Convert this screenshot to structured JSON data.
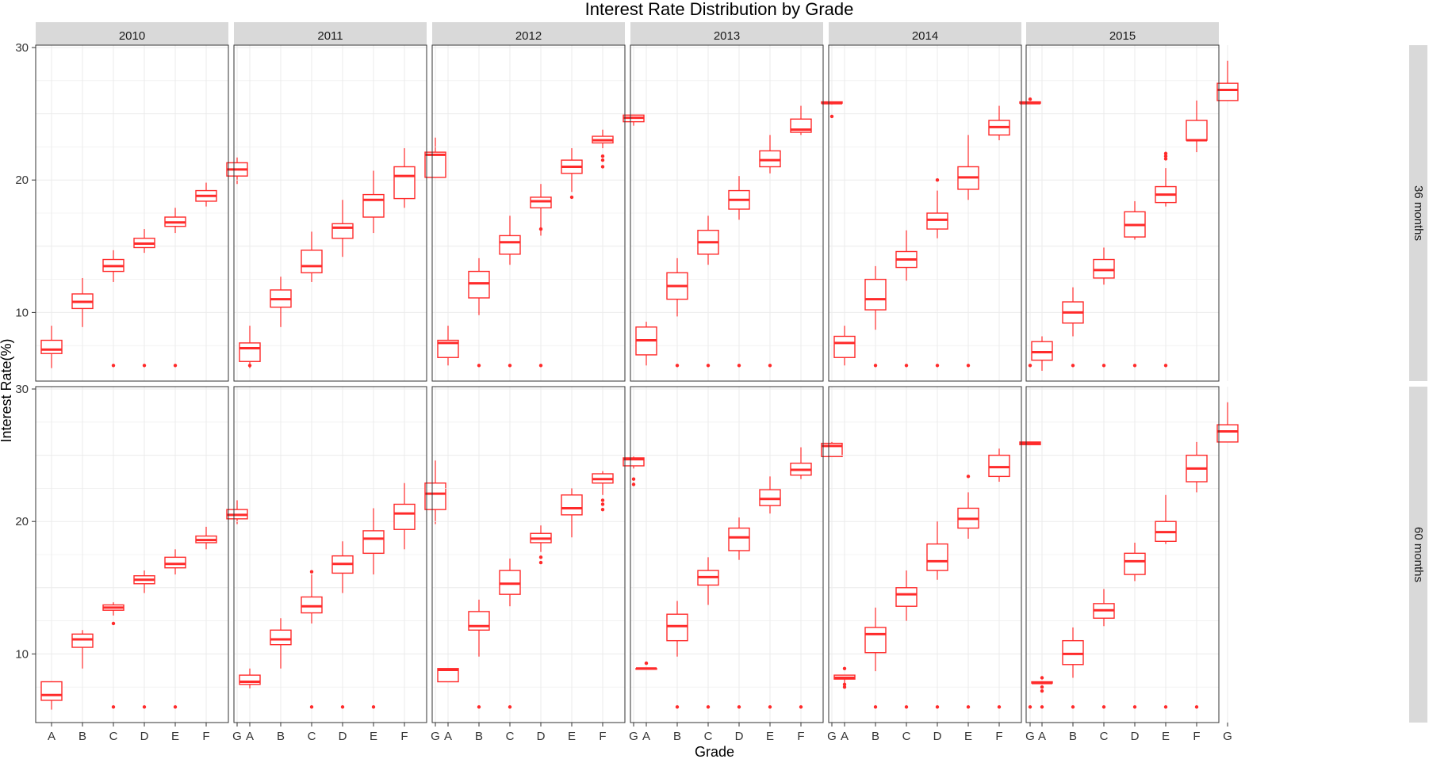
{
  "chart_data": {
    "type": "boxplot",
    "title": "Interest Rate Distribution by Grade",
    "xlabel": "Grade",
    "ylabel": "Interest Rate(%)",
    "ylim": [
      5,
      30
    ],
    "yticks": [
      10,
      20,
      30
    ],
    "grid": true,
    "color": "#ff2a2a",
    "grid_color": "#ebebeb",
    "strip_fill": "#d9d9d9",
    "panel_border": "#333333",
    "years": [
      "2010",
      "2011",
      "2012",
      "2013",
      "2014",
      "2015"
    ],
    "terms": [
      "36 months",
      "60 months"
    ],
    "grades": [
      "A",
      "B",
      "C",
      "D",
      "E",
      "F",
      "G"
    ],
    "boxes": {
      "36 months": {
        "2010": [
          [
            5.8,
            6.9,
            7.2,
            7.9,
            9.0,
            []
          ],
          [
            8.9,
            10.3,
            10.8,
            11.4,
            12.6,
            []
          ],
          [
            12.3,
            13.1,
            13.5,
            14.0,
            14.7,
            [
              6.0
            ]
          ],
          [
            14.5,
            14.9,
            15.2,
            15.6,
            16.3,
            [
              6.0
            ]
          ],
          [
            16.0,
            16.5,
            16.8,
            17.2,
            17.9,
            [
              6.0
            ]
          ],
          [
            18.0,
            18.4,
            18.8,
            19.2,
            19.8,
            []
          ],
          [
            19.7,
            20.3,
            20.8,
            21.3,
            21.7,
            []
          ]
        ],
        "2011": [
          [
            5.8,
            6.3,
            7.3,
            7.7,
            9.0,
            [
              6.0
            ]
          ],
          [
            8.9,
            10.4,
            11.0,
            11.7,
            12.7,
            []
          ],
          [
            12.3,
            13.0,
            13.5,
            14.7,
            16.1,
            []
          ],
          [
            14.2,
            15.6,
            16.4,
            16.7,
            18.5,
            []
          ],
          [
            16.0,
            17.2,
            18.5,
            18.9,
            20.7,
            []
          ],
          [
            17.9,
            18.6,
            20.3,
            21.0,
            22.4,
            []
          ],
          [
            20.2,
            20.2,
            21.9,
            22.1,
            23.2,
            []
          ]
        ],
        "2012": [
          [
            6.0,
            6.6,
            7.7,
            7.9,
            9.0,
            []
          ],
          [
            9.8,
            11.1,
            12.2,
            13.1,
            14.1,
            [
              6.0
            ]
          ],
          [
            13.6,
            14.4,
            15.3,
            15.8,
            17.3,
            [
              6.0
            ]
          ],
          [
            15.8,
            17.9,
            18.4,
            18.7,
            19.7,
            [
              6.0,
              16.3
            ]
          ],
          [
            19.1,
            20.5,
            21.0,
            21.5,
            22.4,
            [
              18.7
            ]
          ],
          [
            22.4,
            22.8,
            23.0,
            23.3,
            23.8,
            [
              21.0,
              21.5,
              21.8
            ]
          ],
          [
            24.1,
            24.4,
            24.7,
            24.9,
            24.9,
            []
          ]
        ],
        "2013": [
          [
            6.0,
            6.8,
            7.9,
            8.9,
            9.3,
            []
          ],
          [
            9.7,
            11.0,
            12.0,
            13.0,
            14.1,
            [
              6.0
            ]
          ],
          [
            13.6,
            14.4,
            15.3,
            16.2,
            17.3,
            [
              6.0
            ]
          ],
          [
            17.0,
            17.8,
            18.5,
            19.2,
            20.3,
            [
              6.0
            ]
          ],
          [
            20.5,
            21.0,
            21.5,
            22.2,
            23.4,
            [
              6.0
            ]
          ],
          [
            23.4,
            23.6,
            23.8,
            24.6,
            25.6,
            []
          ],
          [
            25.7,
            25.8,
            25.8,
            25.9,
            25.9,
            [
              24.8
            ]
          ]
        ],
        "2014": [
          [
            6.0,
            6.6,
            7.7,
            8.2,
            9.0,
            []
          ],
          [
            8.7,
            10.2,
            11.0,
            12.5,
            13.5,
            [
              6.0
            ]
          ],
          [
            12.4,
            13.4,
            14.0,
            14.6,
            16.2,
            [
              6.0
            ]
          ],
          [
            15.6,
            16.3,
            17.0,
            17.5,
            19.2,
            [
              6.0,
              20.0
            ]
          ],
          [
            18.5,
            19.3,
            20.2,
            21.0,
            23.4,
            [
              6.0
            ]
          ],
          [
            23.0,
            23.4,
            24.0,
            24.5,
            25.6,
            []
          ],
          [
            25.8,
            25.8,
            25.8,
            25.9,
            25.9,
            [
              6.0,
              26.1
            ]
          ]
        ],
        "2015": [
          [
            5.6,
            6.4,
            7.0,
            7.8,
            8.2,
            []
          ],
          [
            8.2,
            9.2,
            10.0,
            10.8,
            11.9,
            [
              6.0
            ]
          ],
          [
            12.1,
            12.6,
            13.2,
            14.0,
            14.9,
            [
              6.0
            ]
          ],
          [
            15.5,
            15.7,
            16.6,
            17.6,
            18.4,
            [
              6.0
            ]
          ],
          [
            18.0,
            18.3,
            18.9,
            19.5,
            20.9,
            [
              6.0,
              21.6,
              21.8,
              22.0
            ]
          ],
          [
            22.1,
            23.0,
            23.0,
            24.5,
            26.0,
            []
          ],
          [
            26.0,
            26.0,
            26.8,
            27.3,
            29.0,
            []
          ]
        ]
      },
      "60 months": {
        "2010": [
          [
            5.8,
            6.5,
            6.9,
            7.9,
            7.9,
            []
          ],
          [
            8.9,
            10.5,
            11.1,
            11.5,
            11.8,
            []
          ],
          [
            12.9,
            13.3,
            13.5,
            13.7,
            13.9,
            [
              12.3,
              6.0
            ]
          ],
          [
            14.6,
            15.3,
            15.6,
            15.9,
            16.3,
            [
              6.0
            ]
          ],
          [
            16.0,
            16.5,
            16.8,
            17.3,
            17.9,
            [
              6.0
            ]
          ],
          [
            17.9,
            18.4,
            18.6,
            18.9,
            19.6,
            []
          ],
          [
            19.8,
            20.2,
            20.5,
            20.9,
            21.6,
            []
          ]
        ],
        "2011": [
          [
            7.4,
            7.7,
            7.9,
            8.4,
            8.9,
            []
          ],
          [
            8.9,
            10.7,
            11.1,
            11.8,
            12.7,
            []
          ],
          [
            12.3,
            13.1,
            13.6,
            14.3,
            16.0,
            [
              6.0,
              16.2
            ]
          ],
          [
            14.6,
            16.1,
            16.8,
            17.4,
            18.5,
            [
              6.0
            ]
          ],
          [
            16.0,
            17.6,
            18.7,
            19.3,
            21.0,
            [
              6.0
            ]
          ],
          [
            17.9,
            19.4,
            20.6,
            21.3,
            22.9,
            []
          ],
          [
            19.8,
            20.9,
            22.1,
            22.9,
            24.6,
            []
          ]
        ],
        "2012": [
          [
            7.9,
            7.9,
            8.8,
            8.9,
            8.9,
            []
          ],
          [
            9.8,
            11.8,
            12.1,
            13.2,
            14.1,
            [
              6.0
            ]
          ],
          [
            13.6,
            14.5,
            15.3,
            16.3,
            17.2,
            [
              6.0
            ]
          ],
          [
            17.7,
            18.4,
            18.7,
            19.1,
            19.7,
            [
              16.9,
              17.3
            ]
          ],
          [
            18.8,
            20.5,
            21.0,
            22.0,
            22.5,
            []
          ],
          [
            22.0,
            22.9,
            23.2,
            23.6,
            23.8,
            [
              20.9,
              21.3,
              21.6
            ]
          ],
          [
            24.0,
            24.2,
            24.7,
            24.8,
            24.9,
            [
              22.8,
              23.2
            ]
          ]
        ],
        "2013": [
          [
            8.9,
            8.9,
            8.9,
            8.9,
            8.9,
            [
              9.3
            ]
          ],
          [
            9.8,
            11.0,
            12.1,
            13.0,
            14.0,
            [
              6.0
            ]
          ],
          [
            13.7,
            15.2,
            15.8,
            16.3,
            17.3,
            [
              6.0
            ]
          ],
          [
            17.1,
            17.8,
            18.8,
            19.5,
            20.3,
            [
              6.0
            ]
          ],
          [
            20.6,
            21.2,
            21.7,
            22.4,
            23.4,
            [
              6.0
            ]
          ],
          [
            23.2,
            23.5,
            23.9,
            24.4,
            25.6,
            [
              6.0
            ]
          ],
          [
            24.9,
            24.9,
            25.7,
            25.9,
            26.0,
            []
          ]
        ],
        "2014": [
          [
            7.8,
            8.1,
            8.2,
            8.4,
            8.4,
            [
              7.5,
              7.7,
              8.9
            ]
          ],
          [
            8.7,
            10.1,
            11.5,
            12.0,
            13.5,
            [
              6.0
            ]
          ],
          [
            12.5,
            13.6,
            14.5,
            15.0,
            16.3,
            [
              6.0
            ]
          ],
          [
            15.6,
            16.3,
            17.0,
            18.3,
            20.0,
            [
              6.0
            ]
          ],
          [
            18.7,
            19.5,
            20.2,
            21.0,
            22.2,
            [
              6.0,
              23.4
            ]
          ],
          [
            23.0,
            23.4,
            24.1,
            25.0,
            25.5,
            [
              6.0
            ]
          ],
          [
            25.8,
            25.8,
            25.9,
            26.0,
            26.0,
            [
              6.0
            ]
          ]
        ],
        "2015": [
          [
            7.7,
            7.8,
            7.8,
            7.9,
            7.9,
            [
              6.0,
              7.2,
              7.5,
              8.2
            ]
          ],
          [
            8.2,
            9.2,
            10.0,
            11.0,
            12.0,
            [
              6.0
            ]
          ],
          [
            12.1,
            12.7,
            13.3,
            13.8,
            14.9,
            [
              6.0
            ]
          ],
          [
            15.5,
            16.0,
            17.0,
            17.6,
            18.4,
            [
              6.0
            ]
          ],
          [
            18.3,
            18.5,
            19.2,
            20.0,
            22.0,
            [
              6.0
            ]
          ],
          [
            22.2,
            23.0,
            24.0,
            25.0,
            26.0,
            [
              6.0
            ]
          ],
          [
            26.0,
            26.0,
            26.8,
            27.3,
            29.0,
            []
          ]
        ]
      }
    }
  }
}
